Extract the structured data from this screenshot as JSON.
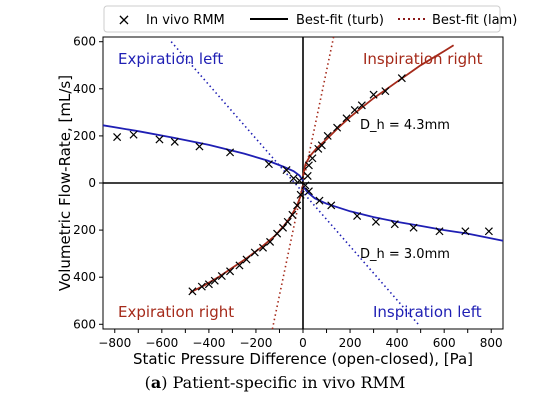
{
  "chart_data": {
    "type": "line",
    "xlabel": "Static Pressure Difference (open-closed), [Pa]",
    "ylabel": "Volumetric Flow-Rate, [mL/s]",
    "xlim": [
      -850,
      850
    ],
    "ylim": [
      -620,
      620
    ],
    "xticks": [
      -800,
      -700,
      -600,
      -500,
      -400,
      -300,
      -200,
      -100,
      0,
      100,
      200,
      300,
      400,
      500,
      600,
      700,
      800
    ],
    "yticks": [
      -600,
      -400,
      -200,
      0,
      200,
      400,
      600
    ],
    "ytick_labels": [
      "600",
      "400",
      "200",
      "0",
      "200",
      "400",
      "600"
    ],
    "grid": false,
    "legend": {
      "placement": "top-outside",
      "entries": [
        {
          "label": "In vivo RMM",
          "marker": "x",
          "color": "#000000"
        },
        {
          "label": "Best-fit (turb)",
          "style": "solid",
          "color": "#000000"
        },
        {
          "label": "Best-fit (lam)",
          "style": "dotted",
          "color": "#8b1a1a"
        }
      ]
    },
    "annotations": {
      "expiration_left": "Expiration left",
      "inspiration_right": "Inspiration right",
      "expiration_right": "Expiration right",
      "inspiration_left": "Inspiration left",
      "dh_upper": "D_h = 4.3mm",
      "dh_lower": "D_h = 3.0mm"
    },
    "series": [
      {
        "name": "In vivo RMM",
        "kind": "scatter",
        "color": "#000000",
        "points": [
          [
            -790,
            195
          ],
          [
            -720,
            205
          ],
          [
            -610,
            185
          ],
          [
            -545,
            175
          ],
          [
            -440,
            155
          ],
          [
            -310,
            130
          ],
          [
            -145,
            80
          ],
          [
            -70,
            55
          ],
          [
            -40,
            20
          ],
          [
            -15,
            10
          ],
          [
            20,
            30
          ],
          [
            25,
            75
          ],
          [
            40,
            105
          ],
          [
            65,
            145
          ],
          [
            80,
            160
          ],
          [
            105,
            200
          ],
          [
            145,
            235
          ],
          [
            185,
            275
          ],
          [
            220,
            310
          ],
          [
            250,
            330
          ],
          [
            300,
            375
          ],
          [
            350,
            390
          ],
          [
            420,
            445
          ],
          [
            -470,
            -460
          ],
          [
            -430,
            -440
          ],
          [
            -400,
            -430
          ],
          [
            -375,
            -415
          ],
          [
            -345,
            -395
          ],
          [
            -310,
            -375
          ],
          [
            -270,
            -350
          ],
          [
            -240,
            -325
          ],
          [
            -205,
            -295
          ],
          [
            -170,
            -275
          ],
          [
            -140,
            -250
          ],
          [
            -110,
            -215
          ],
          [
            -85,
            -190
          ],
          [
            -65,
            -165
          ],
          [
            -45,
            -135
          ],
          [
            -25,
            -95
          ],
          [
            -10,
            -50
          ],
          [
            10,
            -10
          ],
          [
            25,
            -35
          ],
          [
            70,
            -75
          ],
          [
            120,
            -95
          ],
          [
            230,
            -140
          ],
          [
            310,
            -165
          ],
          [
            390,
            -175
          ],
          [
            470,
            -190
          ],
          [
            580,
            -205
          ],
          [
            690,
            -205
          ],
          [
            790,
            -205
          ]
        ]
      },
      {
        "name": "Best-fit (turb)",
        "kind": "line",
        "color": "#1f1fb4",
        "segment": "Expiration left",
        "points": [
          [
            -850,
            245
          ],
          [
            -700,
            220
          ],
          [
            -550,
            192
          ],
          [
            -400,
            162
          ],
          [
            -250,
            125
          ],
          [
            -150,
            95
          ],
          [
            -80,
            68
          ],
          [
            -40,
            50
          ],
          [
            -15,
            32
          ],
          [
            0,
            10
          ]
        ]
      },
      {
        "name": "Best-fit (turb)",
        "kind": "line",
        "color": "#a52a1a",
        "segment": "Inspiration right",
        "points": [
          [
            0,
            30
          ],
          [
            10,
            80
          ],
          [
            30,
            115
          ],
          [
            60,
            150
          ],
          [
            100,
            185
          ],
          [
            150,
            235
          ],
          [
            200,
            280
          ],
          [
            250,
            320
          ],
          [
            300,
            360
          ],
          [
            350,
            395
          ],
          [
            400,
            430
          ],
          [
            450,
            465
          ],
          [
            500,
            500
          ],
          [
            550,
            530
          ],
          [
            600,
            560
          ],
          [
            640,
            585
          ]
        ]
      },
      {
        "name": "Best-fit (turb)",
        "kind": "line",
        "color": "#a52a1a",
        "segment": "Expiration right",
        "points": [
          [
            -480,
            -465
          ],
          [
            -420,
            -435
          ],
          [
            -360,
            -400
          ],
          [
            -300,
            -360
          ],
          [
            -240,
            -320
          ],
          [
            -180,
            -275
          ],
          [
            -120,
            -225
          ],
          [
            -80,
            -180
          ],
          [
            -50,
            -140
          ],
          [
            -25,
            -95
          ],
          [
            -10,
            -55
          ],
          [
            0,
            -10
          ]
        ]
      },
      {
        "name": "Best-fit (turb)",
        "kind": "line",
        "color": "#1f1fb4",
        "segment": "Inspiration left",
        "points": [
          [
            0,
            -15
          ],
          [
            20,
            -40
          ],
          [
            50,
            -65
          ],
          [
            100,
            -88
          ],
          [
            200,
            -120
          ],
          [
            300,
            -145
          ],
          [
            400,
            -165
          ],
          [
            500,
            -182
          ],
          [
            600,
            -200
          ],
          [
            700,
            -215
          ],
          [
            850,
            -245
          ]
        ]
      },
      {
        "name": "Best-fit (lam)",
        "kind": "line",
        "style": "dotted",
        "color": "#1f1fb4",
        "points": [
          [
            -560,
            600
          ],
          [
            490,
            -600
          ]
        ]
      },
      {
        "name": "Best-fit (lam)",
        "kind": "line",
        "style": "dotted",
        "color": "#a52a1a",
        "points": [
          [
            -130,
            -620
          ],
          [
            130,
            620
          ]
        ]
      }
    ]
  },
  "caption": {
    "label": "a",
    "text": "Patient-specific in vivo RMM"
  }
}
